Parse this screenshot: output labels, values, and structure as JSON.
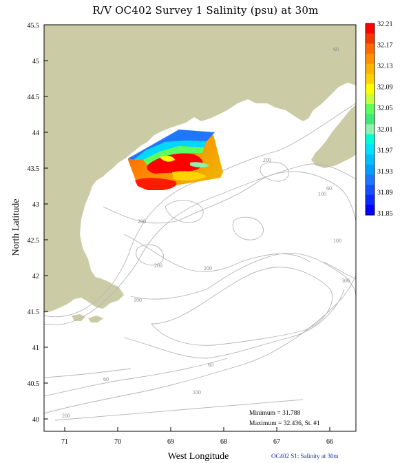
{
  "title": "R/V OC402 Survey 1 Salinity (psu) at 30m",
  "axes": {
    "xlabel": "West Longitude",
    "ylabel": "North Latitude",
    "x_ticks": [
      "71",
      "70",
      "69",
      "68",
      "67",
      "66"
    ],
    "y_ticks": [
      "45.5",
      "45",
      "44.5",
      "44",
      "43.5",
      "43",
      "42.5",
      "42",
      "41.5",
      "41",
      "40.5",
      "40"
    ]
  },
  "colorbar": {
    "labels": [
      "32.21",
      "32.17",
      "32.13",
      "32.09",
      "32.05",
      "32.01",
      "31.97",
      "31.93",
      "31.89",
      "31.85"
    ],
    "colors": [
      "#ff0000",
      "#f23a00",
      "#ff6a00",
      "#ff9000",
      "#ffb400",
      "#ffd200",
      "#ffff00",
      "#c8ff3c",
      "#5cff5c",
      "#40e87a",
      "#90f0b0",
      "#00ffd8",
      "#00e0ff",
      "#00c0ff",
      "#00a0ff",
      "#1e78ff",
      "#1450ff",
      "#0a28ff",
      "#0000ff"
    ]
  },
  "contour_labels": [
    "60",
    "200",
    "60",
    "100",
    "200",
    "100",
    "300",
    "200",
    "200",
    "100",
    "60",
    "60",
    "100",
    "200"
  ],
  "stats": {
    "minimum": "Minimum = 31.788",
    "maximum": "Maximum = 32.436, St. #1"
  },
  "footer": "OC402  S1: Salinity at 30m",
  "colors": {
    "land": "#cbcca6",
    "contour": "#b4b4b4"
  }
}
